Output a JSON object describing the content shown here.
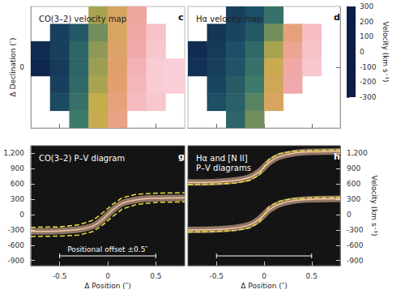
{
  "chart_data": [
    {
      "type": "heatmap",
      "panel_label": "c",
      "title": "CO(3–2) velocity map",
      "ylabel": "Δ Declination (″)",
      "xlim": [
        -0.8,
        0.8
      ],
      "xticks": [
        -0.5,
        0,
        0.5
      ],
      "ylim": [
        -0.7,
        0.7
      ],
      "yticks": [
        0
      ],
      "tick_labels": "y",
      "x": [
        -0.7,
        -0.5,
        -0.3,
        -0.1,
        0.1,
        0.3,
        0.5,
        0.7
      ],
      "y": [
        0.6,
        0.4,
        0.2,
        0,
        -0.2,
        -0.4,
        -0.6
      ],
      "cells": [
        [
          null,
          null,
          null,
          -20,
          60,
          180,
          null,
          null
        ],
        [
          null,
          -230,
          -180,
          -60,
          60,
          190,
          260,
          null
        ],
        [
          -270,
          -230,
          -150,
          -40,
          80,
          200,
          270,
          null
        ],
        [
          -280,
          -240,
          -150,
          -30,
          90,
          220,
          280,
          290
        ],
        [
          null,
          -230,
          -140,
          -20,
          100,
          230,
          280,
          290
        ],
        [
          null,
          -210,
          -120,
          0,
          120,
          240,
          270,
          null
        ],
        [
          null,
          null,
          -100,
          10,
          140,
          null,
          null,
          null
        ]
      ]
    },
    {
      "type": "heatmap",
      "panel_label": "d",
      "title": "Hα velocity map",
      "xlim": [
        -0.8,
        0.8
      ],
      "xticks": [
        -0.5,
        0,
        0.5
      ],
      "ylim": [
        -0.7,
        0.7
      ],
      "yticks": [
        0
      ],
      "tick_labels": false,
      "x": [
        -0.7,
        -0.5,
        -0.3,
        -0.1,
        0.1,
        0.3,
        0.5,
        0.7
      ],
      "y": [
        0.6,
        0.4,
        0.2,
        0,
        -0.2,
        -0.4,
        -0.6
      ],
      "cells": [
        [
          null,
          null,
          -230,
          -200,
          -120,
          null,
          null,
          null
        ],
        [
          null,
          -250,
          -220,
          -180,
          -60,
          120,
          250,
          null
        ],
        [
          -270,
          -240,
          -200,
          -140,
          -20,
          160,
          260,
          null
        ],
        [
          -260,
          -230,
          -190,
          -120,
          20,
          190,
          270,
          null
        ],
        [
          null,
          -220,
          -170,
          -100,
          40,
          200,
          null,
          null
        ],
        [
          null,
          -200,
          -160,
          -80,
          60,
          null,
          null,
          null
        ],
        [
          null,
          null,
          -150,
          -60,
          null,
          null,
          null,
          null
        ]
      ],
      "colorbar": {
        "label": "Velocity (km s⁻¹)",
        "range": [
          -300,
          300
        ],
        "ticks": [
          -300,
          -200,
          -100,
          0,
          100,
          200,
          300
        ]
      }
    },
    {
      "type": "line",
      "panel_label": "g",
      "title": "CO(3–2) P–V diagram",
      "xlabel": "Δ Position (″)",
      "xlim": [
        -0.8,
        0.8
      ],
      "xticks": [
        -0.5,
        0,
        0.5
      ],
      "ylim": [
        -1000,
        1350
      ],
      "yticks": [
        -900,
        -600,
        -300,
        0,
        300,
        600,
        900,
        {
          "value": 1200,
          "label": "1,200"
        }
      ],
      "annotation": {
        "text": "Positional offset ±0.5″",
        "range": [
          -0.5,
          0.5
        ]
      },
      "series": [
        {
          "x": [
            -0.8,
            -0.5,
            -0.3,
            -0.15,
            -0.05,
            0,
            0.05,
            0.15,
            0.3,
            0.5,
            0.8
          ],
          "values": [
            -330,
            -320,
            -290,
            -220,
            -90,
            0,
            90,
            220,
            290,
            320,
            330
          ],
          "color": "#f5c6a5",
          "line_style": "solid"
        },
        {
          "x": [
            -0.8,
            -0.5,
            -0.3,
            -0.15,
            -0.05,
            0,
            0.05,
            0.15,
            0.3,
            0.5,
            0.8
          ],
          "values": [
            -250,
            -240,
            -200,
            -110,
            40,
            120,
            200,
            330,
            400,
            420,
            430
          ],
          "color": "#e6e23a",
          "line_style": "dashed"
        },
        {
          "x": [
            -0.8,
            -0.5,
            -0.3,
            -0.15,
            -0.05,
            0,
            0.05,
            0.15,
            0.3,
            0.5,
            0.8
          ],
          "values": [
            -430,
            -420,
            -400,
            -330,
            -200,
            -120,
            -40,
            110,
            200,
            240,
            250
          ],
          "color": "#e6e23a",
          "line_style": "dashed"
        }
      ]
    },
    {
      "type": "line",
      "panel_label": "h",
      "title": "Hα and [N II]\nP–V diagrams",
      "xlabel": "Δ Position (″)",
      "ylabel": "Velocity (km s⁻¹)",
      "xlim": [
        -0.8,
        0.8
      ],
      "xticks": [
        -0.5,
        0,
        0.5
      ],
      "ylim": [
        -1000,
        1350
      ],
      "yticks": [
        -900,
        -600,
        -300,
        0,
        300,
        600,
        900,
        {
          "value": 1200,
          "label": "1,200"
        }
      ],
      "annotation": {
        "range": [
          -0.5,
          0.5
        ]
      },
      "series": [
        {
          "x": [
            -0.8,
            -0.5,
            -0.3,
            -0.15,
            -0.05,
            0,
            0.05,
            0.15,
            0.3,
            0.5,
            0.8
          ],
          "values": [
            -300,
            -290,
            -260,
            -200,
            -90,
            0,
            90,
            200,
            270,
            300,
            310
          ],
          "color": "#f5c6a5",
          "line_style": "solid"
        },
        {
          "x": [
            -0.8,
            -0.5,
            -0.3,
            -0.15,
            -0.05,
            0,
            0.05,
            0.15,
            0.3,
            0.5,
            0.8
          ],
          "values": [
            630,
            640,
            670,
            730,
            840,
            930,
            1020,
            1130,
            1200,
            1230,
            1240
          ],
          "color": "#f5c6a5",
          "line_style": "solid"
        },
        {
          "x": [
            -0.8,
            -0.5,
            -0.3,
            -0.15,
            -0.05,
            0,
            0.05,
            0.15,
            0.3,
            0.5,
            0.8
          ],
          "values": [
            -340,
            -330,
            -310,
            -260,
            -150,
            0,
            150,
            260,
            310,
            330,
            340
          ],
          "color": "#e6e23a",
          "line_style": "dashed"
        },
        {
          "x": [
            -0.8,
            -0.5,
            -0.3,
            -0.15,
            -0.05,
            0,
            0.05,
            0.15,
            0.3,
            0.5,
            0.8
          ],
          "values": [
            590,
            600,
            620,
            670,
            780,
            930,
            1080,
            1190,
            1240,
            1260,
            1270
          ],
          "color": "#e6e23a",
          "line_style": "dashed"
        }
      ]
    }
  ]
}
